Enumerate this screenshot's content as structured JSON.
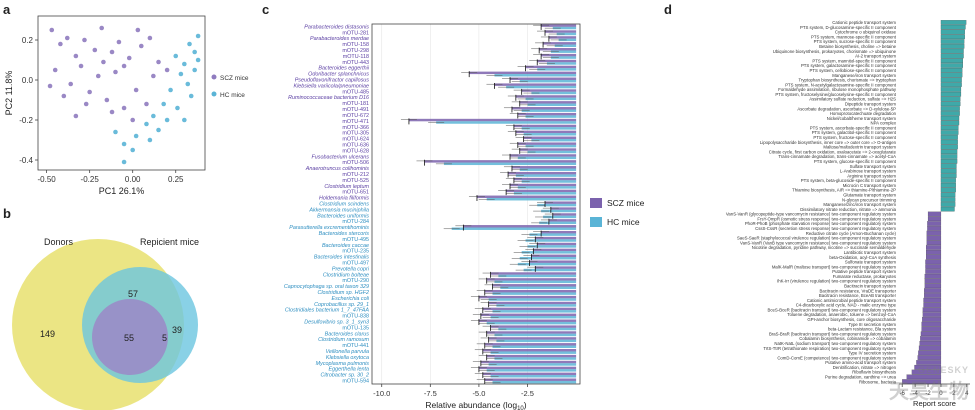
{
  "panel_labels": {
    "a": "a",
    "b": "b",
    "c": "c",
    "d": "d"
  },
  "colors": {
    "scz": "#8f7bbf",
    "hc": "#5ab4d6",
    "purple_bar": "#7b62ad",
    "teal_bar": "#3fa9a9",
    "venn_donor": "#e8e06f",
    "venn_recipient": "#6cc6e0",
    "venn_overlap": "#9b87c7"
  },
  "chart_data": [
    {
      "type": "scatter",
      "panel": "a",
      "xlabel": "PC1 26.1%",
      "ylabel": "PC2 11.8%",
      "xlim": [
        -0.55,
        0.42
      ],
      "ylim": [
        -0.45,
        0.32
      ],
      "xticks": [
        "-0.50",
        "-0.25",
        "0.00",
        "0.25"
      ],
      "xtick_values": [
        -0.5,
        -0.25,
        0,
        0.25
      ],
      "yticks": [
        "0.2",
        "0.0",
        "-0.2",
        "-0.4"
      ],
      "ytick_values": [
        0.2,
        0,
        -0.2,
        -0.4
      ],
      "series": [
        {
          "name": "SCZ mice",
          "points": [
            [
              -0.47,
              0.25
            ],
            [
              -0.42,
              0.18
            ],
            [
              -0.38,
              0.21
            ],
            [
              -0.33,
              0.12
            ],
            [
              -0.28,
              0.2
            ],
            [
              -0.22,
              0.15
            ],
            [
              -0.18,
              0.26
            ],
            [
              -0.12,
              0.14
            ],
            [
              -0.08,
              0.19
            ],
            [
              -0.02,
              0.11
            ],
            [
              0.05,
              0.17
            ],
            [
              0.1,
              0.21
            ],
            [
              0.15,
              0.09
            ],
            [
              -0.45,
              0.05
            ],
            [
              -0.36,
              -0.02
            ],
            [
              -0.3,
              0.07
            ],
            [
              -0.25,
              -0.06
            ],
            [
              -0.2,
              0.02
            ],
            [
              -0.15,
              -0.1
            ],
            [
              -0.1,
              0.04
            ],
            [
              -0.05,
              -0.14
            ],
            [
              0.02,
              -0.05
            ],
            [
              0.08,
              -0.12
            ],
            [
              -0.4,
              -0.08
            ],
            [
              -0.33,
              -0.18
            ],
            [
              -0.27,
              -0.12
            ],
            [
              -0.05,
              0.07
            ],
            [
              0.0,
              -0.2
            ],
            [
              0.12,
              0.02
            ],
            [
              -0.17,
              0.09
            ],
            [
              -0.12,
              -0.16
            ],
            [
              0.2,
              0.05
            ],
            [
              -0.48,
              -0.03
            ],
            [
              0.03,
              0.25
            ]
          ]
        },
        {
          "name": "HC mice",
          "points": [
            [
              0.33,
              0.18
            ],
            [
              0.36,
              0.14
            ],
            [
              0.3,
              0.08
            ],
            [
              0.25,
              0.12
            ],
            [
              0.38,
              0.22
            ],
            [
              0.28,
              0.03
            ],
            [
              0.22,
              -0.05
            ],
            [
              0.34,
              -0.08
            ],
            [
              0.18,
              -0.12
            ],
            [
              0.26,
              -0.14
            ],
            [
              0.3,
              -0.2
            ],
            [
              0.12,
              -0.18
            ],
            [
              0.08,
              -0.22
            ],
            [
              0.02,
              -0.28
            ],
            [
              -0.05,
              -0.32
            ],
            [
              0.15,
              -0.25
            ],
            [
              0.2,
              -0.2
            ],
            [
              -0.05,
              -0.41
            ],
            [
              0.36,
              0.05
            ],
            [
              0.32,
              -0.02
            ],
            [
              -0.1,
              -0.26
            ],
            [
              0.0,
              -0.35
            ],
            [
              0.1,
              -0.3
            ],
            [
              0.38,
              0.1
            ]
          ]
        }
      ]
    },
    {
      "type": "venn",
      "panel": "b",
      "sets": [
        "Donors",
        "Repicient mice"
      ],
      "values": {
        "donors_only": "149",
        "recipient_only": "39",
        "overlap_outer": "57",
        "center": "55",
        "right_small": "5"
      }
    },
    {
      "type": "bar",
      "panel": "c",
      "xlabel": "Relative abundance (log",
      "xlabel_sub": "10",
      "xlabel_end": ")",
      "xlim": [
        -10.5,
        0.2
      ],
      "xticks": [
        "-10.0",
        "-7.5",
        "-5.0",
        "-2.5"
      ],
      "xtick_values": [
        -10,
        -7.5,
        -5,
        -2.5
      ],
      "legend": [
        "SCZ mice",
        "HC mice"
      ],
      "categories": [
        "Parabacteroides distasonis",
        "mOTU-281",
        "Parabacteroides merdae",
        "mOTU-158",
        "mOTU-298",
        "mOTU-118",
        "mOTU-443",
        "Bacteroides eggerthii",
        "Odoribacter splanchnicus",
        "Pseudoflavonifractor capillosus",
        "Klebsiella variicola/pneumoniae",
        "mOTU-485",
        "Ruminococcaceae bacterium D16",
        "mOTU-181",
        "mOTU-491",
        "mOTU-672",
        "mOTU-471",
        "mOTU-366",
        "mOTU-305",
        "mOTU-624",
        "mOTU-636",
        "mOTU-628",
        "Fusobacterium ulcerans",
        "mOTU-506",
        "Anaerotruncus colihominis",
        "mOTU-212",
        "mOTU-525",
        "Clostridium leptum",
        "mOTU-651",
        "Holdemania filiformis",
        "Clostridium scindens",
        "Akkermansia muciniphila",
        "Bacteroides uniformis",
        "mOTU-284",
        "Parasutterella excrementihominis",
        "Bacteroides stercoris",
        "mOTU-495",
        "Bacteroides caccae",
        "mOTU-235",
        "Bacteroides intestinalis",
        "mOTU-497",
        "Prevotella copri",
        "Clostridium bolteae",
        "mOTU-290",
        "Capnocytophaga sp. oral taxon 329",
        "Clostridium sp. HGF2",
        "Escherichia coli",
        "Coprobacillus sp. 29_1",
        "Clostridiales bacterium 1_7_47FAA",
        "mOTU-838",
        "Desulfovibrio sp. 3_1_syn3",
        "mOTU-135",
        "Bacteroides clarus",
        "Clostridium ramosum",
        "mOTU-441",
        "Veillonella parvula",
        "Klebsiella oxytoca",
        "Mycoplasma pulmonis",
        "Eggerthella lenta",
        "Citrobacter sp. 30_2",
        "mOTU-594"
      ],
      "scz_values": [
        -1.8,
        -1.6,
        -1.4,
        -1.7,
        -1.9,
        -1.8,
        -2.0,
        -2.6,
        -5.5,
        -3.4,
        -4.2,
        -2.8,
        -3.1,
        -2.9,
        -3.3,
        -3.0,
        -8.6,
        -3.2,
        -3.1,
        -2.7,
        -3.0,
        -2.9,
        -3.4,
        -7.8,
        -3.3,
        -3.5,
        -3.2,
        -3.4,
        -3.6,
        -5.1,
        -1.6,
        -1.3,
        -1.2,
        -1.4,
        -5.8,
        -1.8,
        -2.1,
        -2.0,
        -2.2,
        -2.3,
        -2.4,
        -2.1,
        -4.4,
        -4.6,
        -4.3,
        -4.7,
        -5.0,
        -4.5,
        -4.8,
        -4.9,
        -5.0,
        -4.4,
        -4.6,
        -4.5,
        -4.7,
        -4.8,
        -4.6,
        -4.9,
        -5.0,
        -4.8,
        -4.7
      ],
      "hc_values": [
        -1.2,
        -1.0,
        -0.9,
        -1.1,
        -1.3,
        -1.3,
        -1.5,
        -2.0,
        -4.2,
        -2.9,
        -3.6,
        -2.3,
        -2.6,
        -2.5,
        -2.8,
        -2.6,
        -7.2,
        -2.8,
        -2.7,
        -2.3,
        -2.6,
        -2.5,
        -3.0,
        -6.8,
        -2.9,
        -3.1,
        -2.8,
        -3.0,
        -3.2,
        -4.6,
        -2.0,
        -1.8,
        -1.7,
        -1.9,
        -6.4,
        -2.4,
        -2.6,
        -2.5,
        -2.8,
        -2.9,
        -3.0,
        -2.7,
        -4.0,
        -4.2,
        -3.9,
        -4.3,
        -4.5,
        -4.1,
        -4.3,
        -4.4,
        -4.6,
        -4.0,
        -4.2,
        -4.1,
        -4.3,
        -4.4,
        -4.2,
        -4.5,
        -4.6,
        -4.4,
        -4.3
      ]
    },
    {
      "type": "bar",
      "panel": "d",
      "xlabel": "Report score",
      "xticks": [
        "-6",
        "-4",
        "-2",
        "0",
        "2",
        "4"
      ],
      "xtick_values": [
        -6,
        -4,
        -2,
        0,
        2,
        4
      ],
      "xlim": [
        -6.5,
        4.5
      ],
      "categories": [
        "Cationic peptide transport system",
        "PTS system, D-glucosamine-specific II component",
        "Cytochrome o ubiquinol oxidase",
        "PTS system, mannose-specific II component",
        "PTS system, sucrose-specific II component",
        "Betaine biosynthesis, choline => betaine",
        "Ubiquinone biosynthesis, prokaryotes, chorismate => ubiquinone",
        "AI-2 transport system",
        "PTS system, mannitol-specific II component",
        "PTS system, galactosamine-specific II component",
        "PTS system, cellobiose-specific II component",
        "Manganese/iron transport system",
        "Tryptophan biosynthesis, chorismate => tryptophan",
        "PTS system, N-acetylgalactosamine-specific II component",
        "Formaldehyde assimilation, ribulose monophosphate pathway",
        "PTS system, fructoselysine/glucoselysine-specific II component",
        "Assimilatory sulfate reduction, sulfate => H2S",
        "Dipeptide transport system",
        "Ascorbate degradation, ascorbate => D-xylulose-5P",
        "Homoprotocatechuate degradation",
        "Nickel/cobalt/heme transport system",
        "NPA complex",
        "PTS system, ascorbate-specific II component",
        "PTS system, galactitol-specific II component",
        "PTS system, fructose-specific II component",
        "Lipopolysaccharide biosynthesis, inner core => outer core => O-antigen",
        "Maltose/maltodextrin transport system",
        "Citrate cycle, first carbon oxidation, oxaloacetate => 2-oxoglutarate",
        "Trans-cinnamate degradation, trans-cinnamate => acetyl-CoA",
        "PTS system, glucose-specific II component",
        "Sulfate transport system",
        "L-Arabinose transport system",
        "Arginine transport system",
        "PTS system, beta-glucoside-specific II component",
        "Microcin C transport system",
        "Thiamine biosynthesis, AIR => thiamine-P/thiamine-2P",
        "Glutamate transport system",
        "N-glycan precursor trimming",
        "Manganese/zinc/iron transport system",
        "Dissimilatory nitrate reduction, nitrate => ammonia",
        "VanS-VanR (glycopeptide-type vancomycin resistance) two-component regulatory system",
        "FrsY-OmpR (osmotic stress response) two-component regulatory system",
        "PhoR-PhoB (phosphate starvation response) two-component regulatory system",
        "CssS-CssR (secretion stress response) two-component regulatory system",
        "Reductive citrate cycle (Arnon-Buchanan cycle)",
        "SaeS-SaeR (staphylococcal virulence regulation) two-component regulatory system",
        "VanS-VanR (VanB type vancomycin resistance) two-component regulatory system",
        "Nicotine degradation, pyridine pathway, nicotine => succinate semialdehyde",
        "Lantibiotic transport system",
        "beta-Oxidation, acyl-CoA synthesis",
        "Sulfonate transport system",
        "MalK-MalR (maltose transport) two-component regulatory system",
        "Putative peptide transport system",
        "Fumarate reductase, prokaryotes",
        "IhK-Irr (virulence regulation) two-component regulatory system",
        "Bacitracin transport system",
        "Bacitracin resistance, VraDE transporter",
        "Bacitracin resistance, BceAB transporter",
        "Cationic antimicrobial peptide transport system",
        "C4-dicarboxylic acid cycle, NAD - malic enzyme type",
        "BceS-BceR (bacitracin transport) two-component regulatory system",
        "Toluene degradation, anaerobic, toluene => benzoyl-CoA",
        "GPI-anchor biosynthesis, core oligosaccharide",
        "Type III secretion system",
        "beta-Lactam resistance, Bla system",
        "BraS-BraR (bacitracin transport) two-component regulatory system",
        "Cobalamin biosynthesis, cobinamide => cobalamin",
        "NatK-NatL (sodium transport) two-component regulatory system",
        "TrtS-TtrR (tetrathionate respiration) two-component regulatory system",
        "Type IV secretion system",
        "ComD-ComE (competence) two-component regulatory system",
        "Putative amino-acid transport system",
        "Denitrification, nitrate => nitrogen",
        "Riboflavin biosynthesis",
        "Purine degradation, xanthine => urea",
        "Ribosome, bacteria"
      ],
      "values": [
        3.9,
        3.8,
        3.7,
        3.7,
        3.6,
        3.6,
        3.5,
        3.5,
        3.4,
        3.4,
        3.3,
        3.3,
        3.2,
        3.2,
        3.1,
        3.1,
        3.0,
        3.0,
        2.9,
        2.9,
        2.8,
        2.8,
        2.7,
        2.7,
        2.6,
        2.6,
        2.6,
        2.5,
        2.5,
        2.5,
        2.4,
        2.4,
        2.4,
        2.3,
        2.3,
        2.3,
        2.2,
        2.2,
        2.2,
        2.1,
        -2.0,
        -2.0,
        -2.1,
        -2.1,
        -2.2,
        -2.2,
        -2.2,
        -2.3,
        -2.3,
        -2.3,
        -2.4,
        -2.4,
        -2.4,
        -2.5,
        -2.5,
        -2.5,
        -2.6,
        -2.6,
        -2.7,
        -2.7,
        -2.8,
        -2.8,
        -2.9,
        -3.0,
        -3.0,
        -3.1,
        -3.2,
        -3.3,
        -3.4,
        -3.5,
        -3.6,
        -3.8,
        -4.1,
        -4.5,
        -5.3,
        -6.0
      ]
    }
  ],
  "watermark": {
    "brand": "GENESKY",
    "chinese": "天昊生物"
  }
}
